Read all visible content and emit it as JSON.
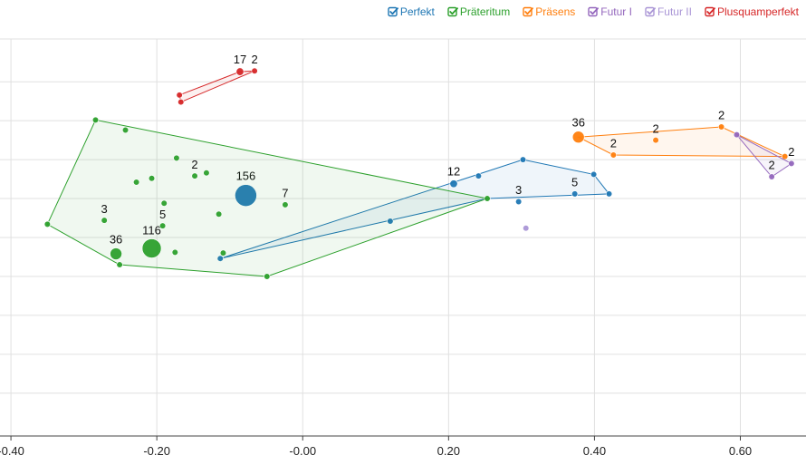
{
  "chart_data": {
    "type": "scatter",
    "title": "",
    "xlabel": "",
    "ylabel": "",
    "xlim": [
      -0.415,
      0.69
    ],
    "ylim": [
      -0.305,
      0.205
    ],
    "x_ticks": [
      "-0.40",
      "-0.20",
      "-0.00",
      "0.20",
      "0.40",
      "0.60"
    ],
    "x_tick_values": [
      -0.4,
      -0.2,
      0.0,
      0.2,
      0.4,
      0.6
    ],
    "y_grid_values": [
      -0.25,
      -0.2,
      -0.15,
      -0.1,
      -0.05,
      0.0,
      0.05,
      0.1,
      0.15
    ],
    "grid": true,
    "legend_position": "top-right",
    "series": [
      {
        "name": "Perfekt",
        "color": "#1f77b4",
        "hull": [
          [
            -0.113,
            -0.077
          ],
          [
            0.302,
            0.05
          ],
          [
            0.399,
            0.031
          ],
          [
            0.42,
            0.006
          ],
          [
            0.253,
            0.0
          ]
        ],
        "points": [
          {
            "x": -0.078,
            "y": 0.004,
            "count": 156,
            "label": "156"
          },
          {
            "x": 0.207,
            "y": 0.019,
            "count": 12,
            "label": "12"
          },
          {
            "x": 0.296,
            "y": -0.004,
            "count": 3,
            "label": "3"
          },
          {
            "x": 0.373,
            "y": 0.006,
            "count": 5,
            "label": "5"
          },
          {
            "x": 0.241,
            "y": 0.029,
            "count": 1,
            "label": ""
          },
          {
            "x": 0.12,
            "y": -0.029,
            "count": 1,
            "label": ""
          },
          {
            "x": -0.113,
            "y": -0.077,
            "count": 1,
            "label": ""
          },
          {
            "x": 0.302,
            "y": 0.05,
            "count": 1,
            "label": ""
          },
          {
            "x": 0.399,
            "y": 0.031,
            "count": 1,
            "label": ""
          },
          {
            "x": 0.42,
            "y": 0.006,
            "count": 1,
            "label": ""
          }
        ]
      },
      {
        "name": "Präteritum",
        "color": "#2ca02c",
        "hull": [
          [
            -0.35,
            -0.033
          ],
          [
            -0.284,
            0.101
          ],
          [
            0.253,
            0.0
          ],
          [
            -0.049,
            -0.1
          ],
          [
            -0.251,
            -0.085
          ]
        ],
        "points": [
          {
            "x": -0.207,
            "y": -0.064,
            "count": 116,
            "label": "116"
          },
          {
            "x": -0.256,
            "y": -0.071,
            "count": 36,
            "label": "36"
          },
          {
            "x": -0.272,
            "y": -0.028,
            "count": 3,
            "label": "3"
          },
          {
            "x": -0.192,
            "y": -0.035,
            "count": 5,
            "label": "5"
          },
          {
            "x": -0.148,
            "y": 0.029,
            "count": 2,
            "label": "2"
          },
          {
            "x": -0.024,
            "y": -0.008,
            "count": 7,
            "label": "7"
          },
          {
            "x": -0.35,
            "y": -0.033,
            "count": 1,
            "label": ""
          },
          {
            "x": -0.284,
            "y": 0.101,
            "count": 1,
            "label": ""
          },
          {
            "x": -0.243,
            "y": 0.088,
            "count": 1,
            "label": ""
          },
          {
            "x": -0.173,
            "y": 0.052,
            "count": 1,
            "label": ""
          },
          {
            "x": -0.132,
            "y": 0.033,
            "count": 1,
            "label": ""
          },
          {
            "x": -0.228,
            "y": 0.021,
            "count": 1,
            "label": ""
          },
          {
            "x": -0.207,
            "y": 0.026,
            "count": 1,
            "label": ""
          },
          {
            "x": -0.19,
            "y": -0.006,
            "count": 1,
            "label": ""
          },
          {
            "x": -0.115,
            "y": -0.02,
            "count": 1,
            "label": ""
          },
          {
            "x": -0.175,
            "y": -0.069,
            "count": 1,
            "label": ""
          },
          {
            "x": -0.109,
            "y": -0.07,
            "count": 1,
            "label": ""
          },
          {
            "x": -0.251,
            "y": -0.085,
            "count": 1,
            "label": ""
          },
          {
            "x": -0.049,
            "y": -0.1,
            "count": 1,
            "label": ""
          },
          {
            "x": 0.253,
            "y": 0.0,
            "count": 1,
            "label": ""
          }
        ]
      },
      {
        "name": "Präsens",
        "color": "#ff7f0e",
        "hull": [
          [
            0.378,
            0.079
          ],
          [
            0.574,
            0.092
          ],
          [
            0.661,
            0.054
          ],
          [
            0.426,
            0.056
          ]
        ],
        "points": [
          {
            "x": 0.378,
            "y": 0.079,
            "count": 36,
            "label": "36"
          },
          {
            "x": 0.574,
            "y": 0.092,
            "count": 2,
            "label": "2"
          },
          {
            "x": 0.484,
            "y": 0.075,
            "count": 2,
            "label": "2"
          },
          {
            "x": 0.426,
            "y": 0.056,
            "count": 2,
            "label": "2"
          },
          {
            "x": 0.661,
            "y": 0.054,
            "count": 1,
            "label": ""
          }
        ]
      },
      {
        "name": "Futur I",
        "color": "#9467bd",
        "hull": [
          [
            0.595,
            0.082
          ],
          [
            0.67,
            0.045
          ],
          [
            0.643,
            0.028
          ]
        ],
        "points": [
          {
            "x": 0.595,
            "y": 0.082,
            "count": 1,
            "label": ""
          },
          {
            "x": 0.67,
            "y": 0.045,
            "count": 2,
            "label": "2"
          },
          {
            "x": 0.643,
            "y": 0.028,
            "count": 2,
            "label": "2"
          }
        ]
      },
      {
        "name": "Futur II",
        "color": "#aa96d6",
        "hull": [],
        "points": [
          {
            "x": 0.306,
            "y": -0.038,
            "count": 1,
            "label": ""
          }
        ]
      },
      {
        "name": "Plusquamperfekt",
        "color": "#d62728",
        "hull": [
          [
            -0.169,
            0.133
          ],
          [
            -0.086,
            0.163
          ],
          [
            -0.066,
            0.164
          ],
          [
            -0.167,
            0.124
          ]
        ],
        "points": [
          {
            "x": -0.086,
            "y": 0.163,
            "count": 17,
            "label": "17"
          },
          {
            "x": -0.066,
            "y": 0.164,
            "count": 2,
            "label": "2"
          },
          {
            "x": -0.169,
            "y": 0.133,
            "count": 1,
            "label": ""
          },
          {
            "x": -0.167,
            "y": 0.124,
            "count": 1,
            "label": ""
          }
        ]
      }
    ]
  }
}
